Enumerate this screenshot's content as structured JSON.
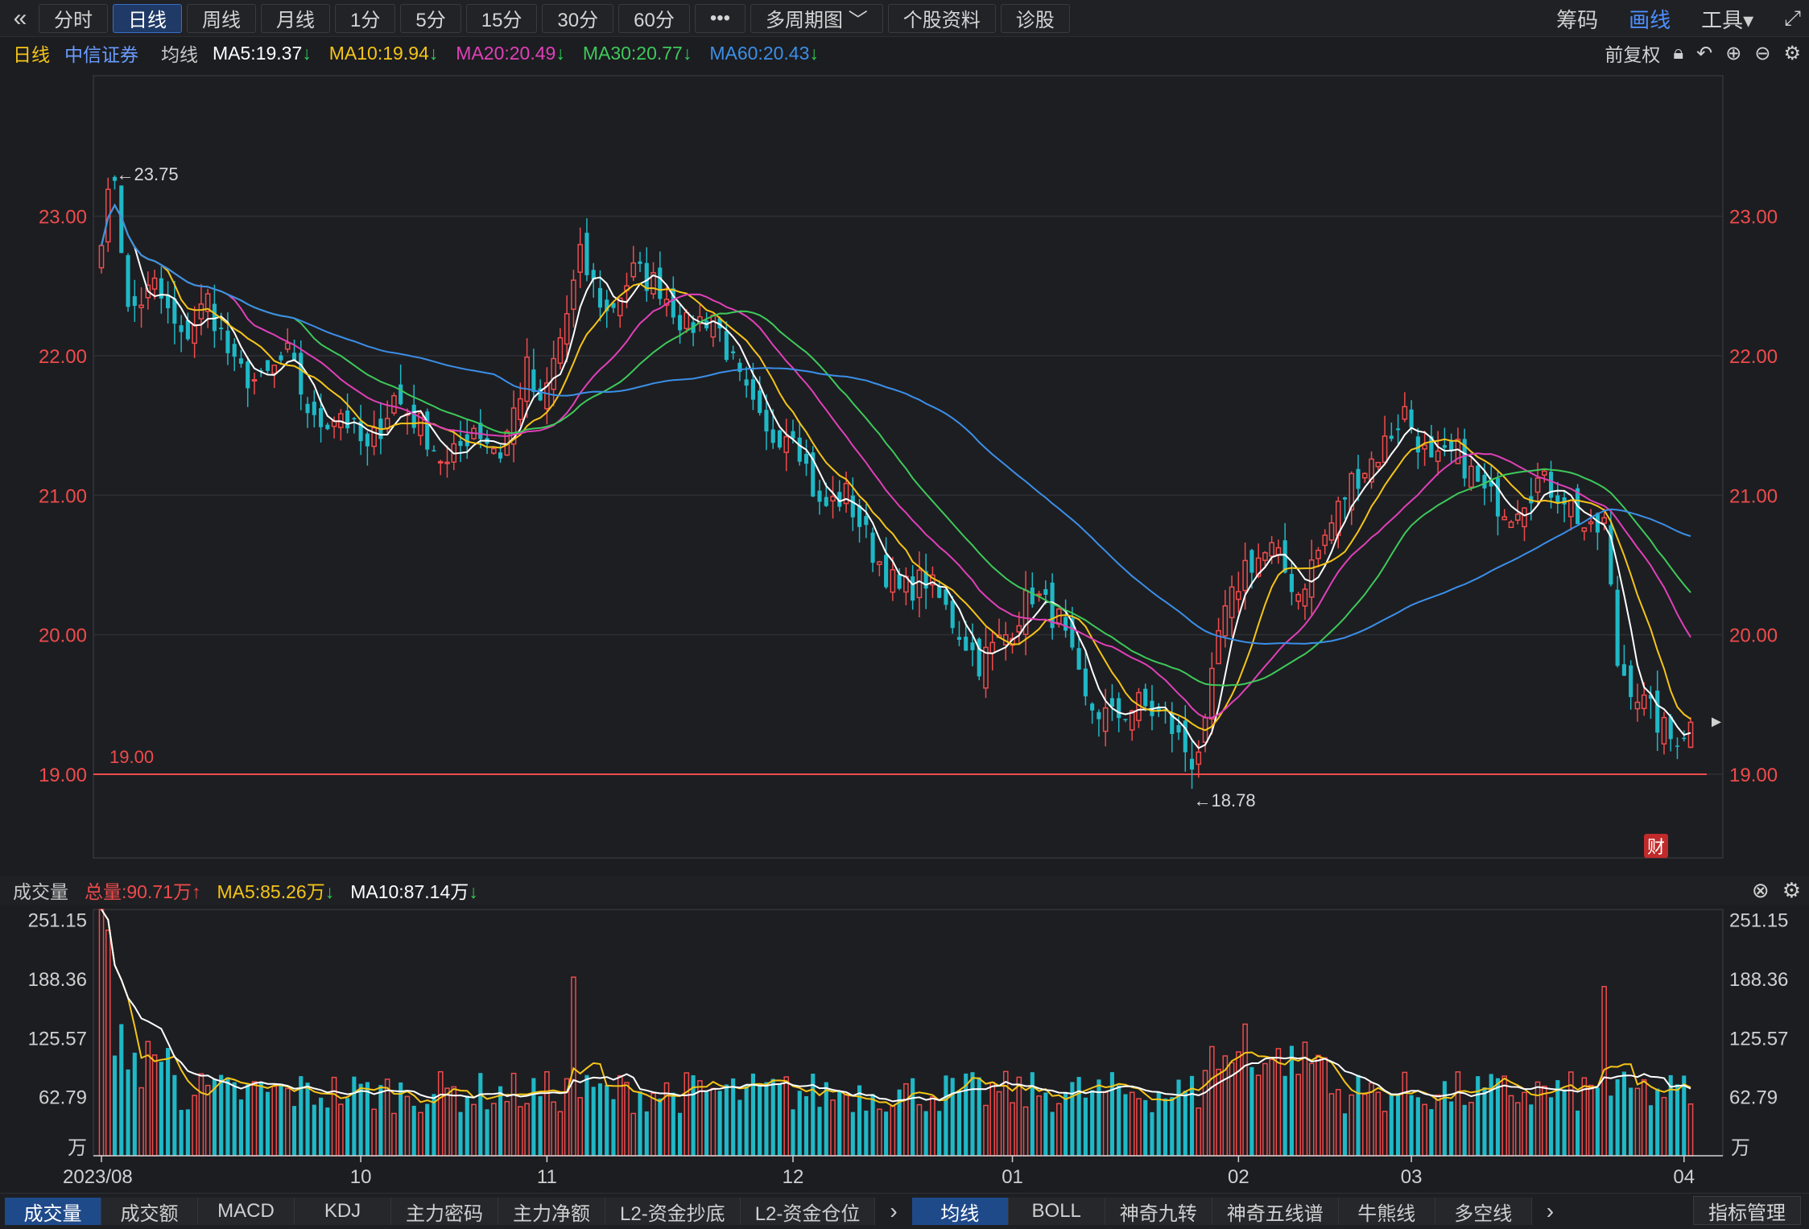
{
  "toolbar": {
    "back_icon": "double-chevron-left-icon",
    "tabs": [
      {
        "label": "分时",
        "active": false
      },
      {
        "label": "日线",
        "active": true
      },
      {
        "label": "周线",
        "active": false
      },
      {
        "label": "月线",
        "active": false
      },
      {
        "label": "1分",
        "active": false
      },
      {
        "label": "5分",
        "active": false
      },
      {
        "label": "15分",
        "active": false
      },
      {
        "label": "30分",
        "active": false
      },
      {
        "label": "60分",
        "active": false
      },
      {
        "label": "•••",
        "active": false
      },
      {
        "label": "多周期图 ﹀",
        "active": false
      },
      {
        "label": "个股资料",
        "active": false
      },
      {
        "label": "诊股",
        "active": false
      }
    ],
    "right": [
      {
        "label": "筹码",
        "active": false
      },
      {
        "label": "画线",
        "active": true
      },
      {
        "label": "工具▾",
        "active": false
      },
      {
        "label": "⤢",
        "active": false
      }
    ]
  },
  "info": {
    "period": "日线",
    "stock_name": "中信证券",
    "ma_label": "均线",
    "ma": [
      {
        "label": "MA5:19.37",
        "arrow": "↓",
        "color": "#ffffff"
      },
      {
        "label": "MA10:19.94",
        "arrow": "↓",
        "color": "#f5c518"
      },
      {
        "label": "MA20:20.49",
        "arrow": "↓",
        "color": "#e040b8"
      },
      {
        "label": "MA30:20.77",
        "arrow": "↓",
        "color": "#3ec95a"
      },
      {
        "label": "MA60:20.43",
        "arrow": "↓",
        "color": "#3b8fe8"
      }
    ],
    "fuquan": "前复权",
    "icons": [
      "lock-icon",
      "undo-icon",
      "zoom-in-icon",
      "zoom-out-icon",
      "gear-icon"
    ]
  },
  "price_chart": {
    "ymin": 18.4,
    "ymax": 23.95,
    "yticks": [
      "23.00",
      "22.00",
      "21.00",
      "20.00",
      "19.00"
    ],
    "ytick_values": [
      23.0,
      22.0,
      21.0,
      20.0,
      19.0
    ],
    "high_label": "←23.75",
    "low_label": "←18.78",
    "ref_line": {
      "value": 19.0,
      "label": "19.00"
    },
    "fin_badge": "财"
  },
  "volume": {
    "title": "成交量",
    "total": "总量:90.71万",
    "total_arrow": "↑",
    "ma5": "MA5:85.26万",
    "ma5_arrow": "↓",
    "ma10": "MA10:87.14万",
    "ma10_arrow": "↓",
    "unit": "万",
    "vmax": 262,
    "yticks": [
      "251.15",
      "188.36",
      "125.57",
      "62.79"
    ],
    "ytick_values": [
      251.15,
      188.36,
      125.57,
      62.79
    ],
    "icons": [
      "close-icon",
      "gear-icon"
    ]
  },
  "x_axis": {
    "labels": [
      "2023/08",
      "10",
      "11",
      "12",
      "01",
      "02",
      "03",
      "04"
    ],
    "label_index": [
      0,
      39,
      67,
      104,
      137,
      171,
      197,
      238
    ]
  },
  "bottom_tabs": {
    "left": [
      {
        "label": "成交量",
        "active": true
      },
      {
        "label": "成交额",
        "active": false
      },
      {
        "label": "MACD",
        "active": false
      },
      {
        "label": "KDJ",
        "active": false
      },
      {
        "label": "主力密码",
        "active": false
      },
      {
        "label": "主力净额",
        "active": false
      },
      {
        "label": "L2-资金抄底",
        "active": false
      },
      {
        "label": "L2-资金仓位",
        "active": false
      }
    ],
    "right": [
      {
        "label": "均线",
        "active": true
      },
      {
        "label": "BOLL",
        "active": false
      },
      {
        "label": "神奇九转",
        "active": false
      },
      {
        "label": "神奇五线谱",
        "active": false
      },
      {
        "label": "牛熊线",
        "active": false
      },
      {
        "label": "多空线",
        "active": false
      }
    ],
    "manage": "指标管理"
  },
  "chart_data": {
    "type": "candlestick",
    "n": 240,
    "close_anchors": [
      [
        0,
        22.9
      ],
      [
        2,
        23.3
      ],
      [
        4,
        22.3
      ],
      [
        8,
        22.5
      ],
      [
        12,
        22.1
      ],
      [
        16,
        22.4
      ],
      [
        20,
        21.9
      ],
      [
        24,
        21.8
      ],
      [
        28,
        22.0
      ],
      [
        32,
        21.5
      ],
      [
        36,
        21.6
      ],
      [
        40,
        21.3
      ],
      [
        44,
        21.7
      ],
      [
        48,
        21.5
      ],
      [
        52,
        21.2
      ],
      [
        56,
        21.5
      ],
      [
        60,
        21.3
      ],
      [
        64,
        21.9
      ],
      [
        66,
        21.6
      ],
      [
        70,
        22.3
      ],
      [
        72,
        22.7
      ],
      [
        76,
        22.3
      ],
      [
        80,
        22.6
      ],
      [
        84,
        22.5
      ],
      [
        88,
        22.2
      ],
      [
        92,
        22.3
      ],
      [
        96,
        21.8
      ],
      [
        100,
        21.4
      ],
      [
        104,
        21.5
      ],
      [
        108,
        20.9
      ],
      [
        112,
        21.0
      ],
      [
        116,
        20.6
      ],
      [
        120,
        20.3
      ],
      [
        124,
        20.4
      ],
      [
        128,
        20.1
      ],
      [
        132,
        19.8
      ],
      [
        136,
        20.0
      ],
      [
        140,
        20.3
      ],
      [
        144,
        20.1
      ],
      [
        148,
        19.5
      ],
      [
        152,
        19.4
      ],
      [
        156,
        19.5
      ],
      [
        160,
        19.4
      ],
      [
        164,
        19.1
      ],
      [
        166,
        19.3
      ],
      [
        168,
        20.0
      ],
      [
        172,
        20.5
      ],
      [
        176,
        20.6
      ],
      [
        180,
        20.3
      ],
      [
        184,
        20.7
      ],
      [
        188,
        21.1
      ],
      [
        192,
        21.3
      ],
      [
        196,
        21.6
      ],
      [
        200,
        21.2
      ],
      [
        204,
        21.3
      ],
      [
        208,
        21.0
      ],
      [
        212,
        20.9
      ],
      [
        216,
        21.1
      ],
      [
        220,
        21.0
      ],
      [
        224,
        20.7
      ],
      [
        226,
        20.8
      ],
      [
        228,
        19.8
      ],
      [
        232,
        19.5
      ],
      [
        236,
        19.25
      ],
      [
        239,
        19.35
      ]
    ],
    "volume_spikes": [
      [
        0,
        262
      ],
      [
        1,
        240
      ],
      [
        3,
        140
      ],
      [
        71,
        190
      ],
      [
        226,
        180
      ],
      [
        172,
        140
      ]
    ],
    "ma_series": [
      {
        "name": "MA5",
        "color": "#ffffff",
        "period": 5
      },
      {
        "name": "MA10",
        "color": "#f5c518",
        "period": 10
      },
      {
        "name": "MA20",
        "color": "#e040b8",
        "period": 20
      },
      {
        "name": "MA30",
        "color": "#3ec95a",
        "period": 30
      },
      {
        "name": "MA60",
        "color": "#3b8fe8",
        "period": 60
      }
    ],
    "colors": {
      "up": "#ef4b4b",
      "down": "#1fb8c6",
      "grid": "#2b2c30",
      "axis": "#ef4b4b"
    }
  }
}
